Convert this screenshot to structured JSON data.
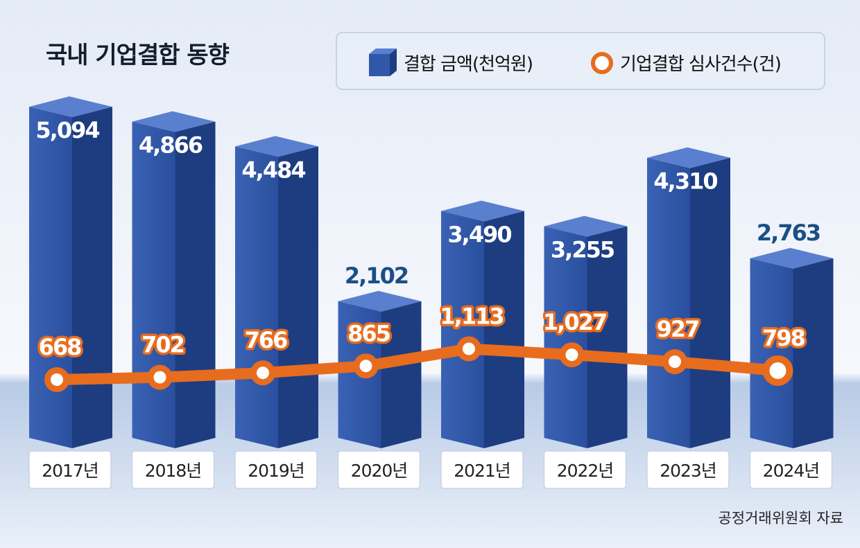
{
  "title": "국내 기업결합 동향",
  "legend": {
    "amount_label": "결합 금액(천억원)",
    "count_label": "기업결합 심사건수(건)"
  },
  "source": "공정거래위원회 자료",
  "colors": {
    "bar_front": "#3057a8",
    "bar_side": "#1d3d80",
    "bar_top": "#5a7fcf",
    "line": "#e86c1e",
    "value_dark": "#1a4f86"
  },
  "chart_data": {
    "type": "bar",
    "categories": [
      "2017년",
      "2018년",
      "2019년",
      "2020년",
      "2021년",
      "2022년",
      "2023년",
      "2024년"
    ],
    "series": [
      {
        "name": "결합 금액(천억원)",
        "type": "bar",
        "values": [
          5094,
          4866,
          4484,
          2102,
          3490,
          3255,
          4310,
          2763
        ],
        "labels": [
          "5,094",
          "4,866",
          "4,484",
          "2,102",
          "3,490",
          "3,255",
          "4,310",
          "2,763"
        ]
      },
      {
        "name": "기업결합 심사건수(건)",
        "type": "line",
        "values": [
          668,
          702,
          766,
          865,
          1113,
          1027,
          927,
          798
        ],
        "labels": [
          "668",
          "702",
          "766",
          "865",
          "1,113",
          "1,027",
          "927",
          "798"
        ]
      }
    ]
  }
}
